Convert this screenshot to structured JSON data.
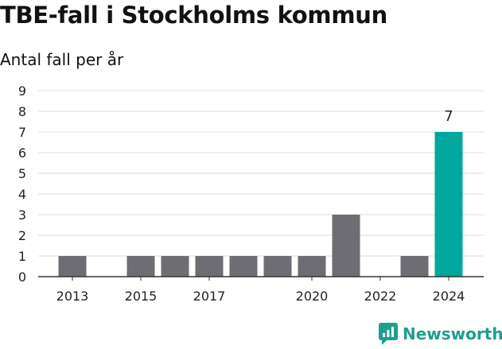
{
  "chart_data": {
    "type": "bar",
    "title": "TBE-fall i Stockholms kommun",
    "subtitle": "Antal fall per år",
    "xlabel": "",
    "ylabel": "",
    "categories": [
      "2013",
      "2014",
      "2015",
      "2016",
      "2017",
      "2018",
      "2019",
      "2020",
      "2021",
      "2022",
      "2023",
      "2024"
    ],
    "values": [
      1,
      0,
      1,
      1,
      1,
      1,
      1,
      1,
      3,
      0,
      1,
      7
    ],
    "x_tick_labels": [
      "2013",
      "2015",
      "2017",
      "2020",
      "2022",
      "2024"
    ],
    "y_ticks": [
      0,
      1,
      2,
      3,
      4,
      5,
      6,
      7,
      8,
      9
    ],
    "ylim": [
      0,
      9
    ],
    "grid": true,
    "highlight_category": "2024",
    "data_labels": [
      {
        "category": "2024",
        "text": "7"
      }
    ],
    "colors": {
      "bar": "#6e6d73",
      "highlight": "#00a79d",
      "grid": "#dddddd",
      "axis": "#333333"
    }
  },
  "brand": {
    "name": "Newsworthy",
    "icon": "newsworthy-logo-icon",
    "color": "#1f9e8e"
  }
}
